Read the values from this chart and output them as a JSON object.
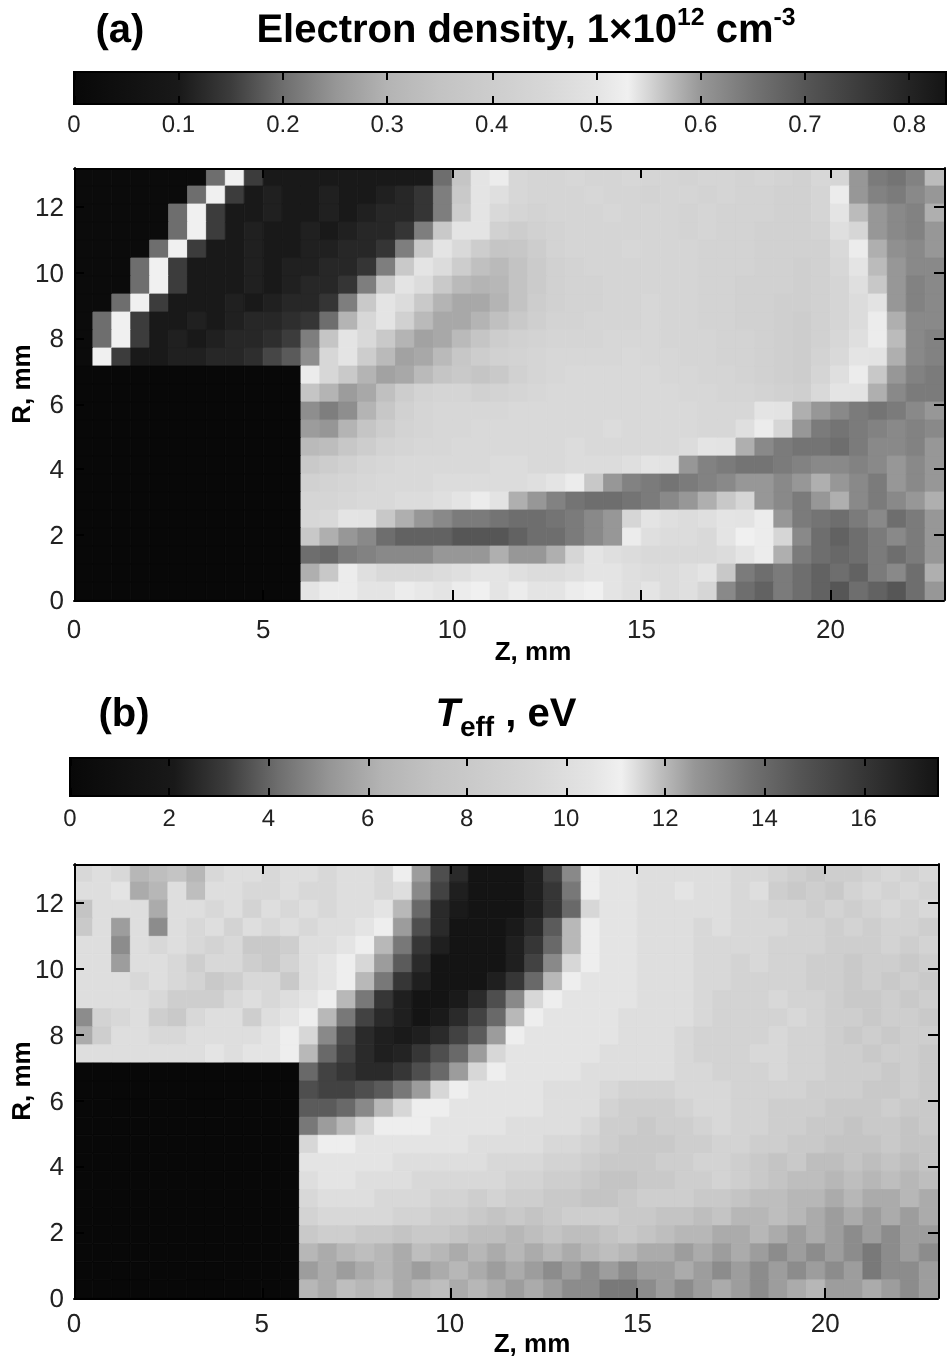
{
  "chart_data": [
    {
      "type": "heatmap",
      "title": "Electron density, 1×10$^{12}$ cm$^{-3}$",
      "annotations": [
        "(a)"
      ],
      "xlabel": "Z, mm",
      "ylabel": "R, mm",
      "xlim": [
        0,
        23
      ],
      "ylim": [
        0,
        13.2
      ],
      "xticks": [
        0,
        5,
        10,
        15,
        20
      ],
      "yticks": [
        0,
        2,
        4,
        6,
        8,
        10,
        12
      ],
      "clim": [
        0,
        0.835
      ],
      "cticks": [
        0,
        0.1,
        0.2,
        0.3,
        0.4,
        0.5,
        0.6,
        0.7,
        0.8
      ],
      "cells": [
        [
          0.02,
          0.02,
          0.02,
          0.02,
          0.02,
          0.02,
          0.02,
          0.2,
          0.53,
          0.15,
          0.1,
          0.1,
          0.1,
          0.1,
          0.1,
          0.1,
          0.1,
          0.1,
          0.1,
          0.2,
          0.36,
          0.5,
          0.52,
          0.45,
          0.44,
          0.44,
          0.45,
          0.44,
          0.44,
          0.45,
          0.44,
          0.44,
          0.43,
          0.44,
          0.44,
          0.43,
          0.44,
          0.43,
          0.42,
          0.45,
          0.55,
          0.6,
          0.64,
          0.65,
          0.63,
          0.57
        ],
        [
          0.02,
          0.02,
          0.02,
          0.02,
          0.02,
          0.02,
          0.2,
          0.53,
          0.15,
          0.1,
          0.11,
          0.1,
          0.1,
          0.11,
          0.1,
          0.1,
          0.11,
          0.12,
          0.14,
          0.22,
          0.38,
          0.5,
          0.48,
          0.45,
          0.44,
          0.44,
          0.44,
          0.45,
          0.44,
          0.44,
          0.43,
          0.44,
          0.44,
          0.43,
          0.44,
          0.43,
          0.43,
          0.42,
          0.42,
          0.44,
          0.52,
          0.6,
          0.63,
          0.64,
          0.62,
          0.6
        ],
        [
          0.02,
          0.02,
          0.02,
          0.02,
          0.02,
          0.2,
          0.53,
          0.15,
          0.1,
          0.1,
          0.11,
          0.1,
          0.1,
          0.11,
          0.1,
          0.11,
          0.12,
          0.12,
          0.14,
          0.22,
          0.4,
          0.5,
          0.46,
          0.44,
          0.43,
          0.44,
          0.44,
          0.44,
          0.45,
          0.44,
          0.44,
          0.44,
          0.43,
          0.44,
          0.43,
          0.43,
          0.43,
          0.42,
          0.42,
          0.44,
          0.5,
          0.57,
          0.6,
          0.62,
          0.63,
          0.58
        ],
        [
          0.02,
          0.02,
          0.02,
          0.02,
          0.02,
          0.2,
          0.53,
          0.15,
          0.1,
          0.11,
          0.1,
          0.1,
          0.11,
          0.1,
          0.11,
          0.12,
          0.12,
          0.14,
          0.22,
          0.38,
          0.5,
          0.5,
          0.42,
          0.4,
          0.42,
          0.43,
          0.44,
          0.44,
          0.44,
          0.44,
          0.44,
          0.44,
          0.43,
          0.44,
          0.43,
          0.43,
          0.42,
          0.42,
          0.42,
          0.43,
          0.48,
          0.55,
          0.6,
          0.62,
          0.63,
          0.6
        ],
        [
          0.02,
          0.02,
          0.02,
          0.02,
          0.2,
          0.53,
          0.15,
          0.1,
          0.1,
          0.11,
          0.1,
          0.1,
          0.11,
          0.11,
          0.12,
          0.12,
          0.14,
          0.22,
          0.38,
          0.5,
          0.46,
          0.4,
          0.36,
          0.37,
          0.4,
          0.43,
          0.44,
          0.44,
          0.44,
          0.45,
          0.44,
          0.44,
          0.44,
          0.43,
          0.43,
          0.43,
          0.42,
          0.42,
          0.42,
          0.42,
          0.46,
          0.52,
          0.58,
          0.61,
          0.62,
          0.6
        ],
        [
          0.02,
          0.02,
          0.02,
          0.2,
          0.53,
          0.15,
          0.1,
          0.1,
          0.1,
          0.11,
          0.1,
          0.11,
          0.11,
          0.12,
          0.12,
          0.14,
          0.22,
          0.38,
          0.5,
          0.47,
          0.4,
          0.34,
          0.32,
          0.35,
          0.39,
          0.42,
          0.43,
          0.44,
          0.44,
          0.44,
          0.44,
          0.44,
          0.44,
          0.43,
          0.43,
          0.43,
          0.42,
          0.42,
          0.41,
          0.42,
          0.45,
          0.5,
          0.57,
          0.6,
          0.62,
          0.62
        ],
        [
          0.02,
          0.02,
          0.02,
          0.2,
          0.53,
          0.15,
          0.1,
          0.1,
          0.1,
          0.11,
          0.1,
          0.11,
          0.12,
          0.12,
          0.14,
          0.22,
          0.38,
          0.5,
          0.47,
          0.38,
          0.32,
          0.3,
          0.31,
          0.35,
          0.39,
          0.42,
          0.43,
          0.43,
          0.44,
          0.44,
          0.44,
          0.44,
          0.44,
          0.43,
          0.43,
          0.42,
          0.42,
          0.42,
          0.41,
          0.42,
          0.44,
          0.48,
          0.56,
          0.6,
          0.63,
          0.62
        ],
        [
          0.02,
          0.02,
          0.2,
          0.53,
          0.15,
          0.1,
          0.1,
          0.1,
          0.11,
          0.1,
          0.11,
          0.12,
          0.12,
          0.14,
          0.22,
          0.38,
          0.5,
          0.47,
          0.38,
          0.3,
          0.28,
          0.28,
          0.3,
          0.35,
          0.4,
          0.42,
          0.43,
          0.43,
          0.44,
          0.44,
          0.45,
          0.44,
          0.44,
          0.43,
          0.43,
          0.42,
          0.42,
          0.41,
          0.41,
          0.42,
          0.44,
          0.47,
          0.54,
          0.6,
          0.63,
          0.62
        ],
        [
          0.02,
          0.2,
          0.53,
          0.15,
          0.1,
          0.1,
          0.11,
          0.1,
          0.11,
          0.12,
          0.12,
          0.13,
          0.14,
          0.2,
          0.3,
          0.45,
          0.5,
          0.42,
          0.32,
          0.28,
          0.28,
          0.3,
          0.34,
          0.38,
          0.41,
          0.43,
          0.43,
          0.44,
          0.44,
          0.44,
          0.45,
          0.44,
          0.44,
          0.43,
          0.43,
          0.42,
          0.42,
          0.41,
          0.4,
          0.42,
          0.44,
          0.47,
          0.52,
          0.58,
          0.62,
          0.62
        ],
        [
          0.02,
          0.2,
          0.53,
          0.15,
          0.1,
          0.11,
          0.1,
          0.11,
          0.12,
          0.12,
          0.13,
          0.15,
          0.22,
          0.36,
          0.5,
          0.46,
          0.38,
          0.3,
          0.27,
          0.28,
          0.32,
          0.36,
          0.4,
          0.42,
          0.43,
          0.44,
          0.44,
          0.44,
          0.45,
          0.45,
          0.45,
          0.44,
          0.44,
          0.44,
          0.43,
          0.43,
          0.42,
          0.41,
          0.4,
          0.42,
          0.45,
          0.48,
          0.52,
          0.57,
          0.62,
          0.63
        ],
        [
          0.02,
          0.53,
          0.15,
          0.1,
          0.1,
          0.11,
          0.11,
          0.12,
          0.12,
          0.13,
          0.16,
          0.18,
          0.24,
          0.45,
          0.5,
          0.4,
          0.32,
          0.27,
          0.28,
          0.32,
          0.37,
          0.4,
          0.42,
          0.43,
          0.44,
          0.45,
          0.45,
          0.45,
          0.45,
          0.46,
          0.45,
          0.45,
          0.44,
          0.44,
          0.43,
          0.43,
          0.42,
          0.41,
          0.4,
          0.43,
          0.46,
          0.5,
          0.54,
          0.58,
          0.62,
          0.63
        ],
        [
          0,
          0,
          0,
          0,
          0,
          0,
          0,
          0,
          0,
          0,
          0,
          0,
          0.52,
          0.45,
          0.38,
          0.3,
          0.27,
          0.28,
          0.32,
          0.36,
          0.38,
          0.36,
          0.38,
          0.42,
          0.44,
          0.45,
          0.46,
          0.46,
          0.46,
          0.46,
          0.46,
          0.45,
          0.45,
          0.44,
          0.44,
          0.43,
          0.42,
          0.41,
          0.4,
          0.44,
          0.48,
          0.52,
          0.56,
          0.6,
          0.63,
          0.64
        ],
        [
          0,
          0,
          0,
          0,
          0,
          0,
          0,
          0,
          0,
          0,
          0,
          0,
          0.36,
          0.3,
          0.26,
          0.28,
          0.34,
          0.4,
          0.43,
          0.44,
          0.44,
          0.42,
          0.43,
          0.44,
          0.45,
          0.46,
          0.46,
          0.46,
          0.46,
          0.46,
          0.46,
          0.46,
          0.45,
          0.45,
          0.44,
          0.44,
          0.43,
          0.42,
          0.41,
          0.46,
          0.5,
          0.54,
          0.58,
          0.62,
          0.64,
          0.64
        ],
        [
          0,
          0,
          0,
          0,
          0,
          0,
          0,
          0,
          0,
          0,
          0,
          0,
          0.24,
          0.22,
          0.24,
          0.3,
          0.37,
          0.42,
          0.44,
          0.45,
          0.45,
          0.45,
          0.45,
          0.46,
          0.46,
          0.46,
          0.46,
          0.46,
          0.46,
          0.46,
          0.46,
          0.46,
          0.46,
          0.45,
          0.45,
          0.45,
          0.5,
          0.54,
          0.58,
          0.6,
          0.62,
          0.64,
          0.65,
          0.64,
          0.62,
          0.6
        ],
        [
          0,
          0,
          0,
          0,
          0,
          0,
          0,
          0,
          0,
          0,
          0,
          0,
          0.26,
          0.25,
          0.3,
          0.36,
          0.4,
          0.43,
          0.44,
          0.45,
          0.45,
          0.46,
          0.46,
          0.46,
          0.46,
          0.46,
          0.46,
          0.46,
          0.47,
          0.46,
          0.46,
          0.46,
          0.46,
          0.45,
          0.45,
          0.48,
          0.52,
          0.55,
          0.6,
          0.64,
          0.65,
          0.64,
          0.63,
          0.62,
          0.63,
          0.62
        ],
        [
          0,
          0,
          0,
          0,
          0,
          0,
          0,
          0,
          0,
          0,
          0,
          0,
          0.32,
          0.33,
          0.37,
          0.4,
          0.43,
          0.44,
          0.45,
          0.45,
          0.46,
          0.46,
          0.46,
          0.46,
          0.46,
          0.46,
          0.47,
          0.46,
          0.46,
          0.46,
          0.46,
          0.46,
          0.47,
          0.5,
          0.54,
          0.58,
          0.62,
          0.64,
          0.65,
          0.65,
          0.66,
          0.64,
          0.62,
          0.62,
          0.63,
          0.6
        ],
        [
          0,
          0,
          0,
          0,
          0,
          0,
          0,
          0,
          0,
          0,
          0,
          0,
          0.38,
          0.4,
          0.42,
          0.44,
          0.45,
          0.46,
          0.46,
          0.46,
          0.46,
          0.46,
          0.47,
          0.47,
          0.46,
          0.46,
          0.47,
          0.47,
          0.47,
          0.48,
          0.5,
          0.54,
          0.6,
          0.63,
          0.64,
          0.65,
          0.65,
          0.64,
          0.63,
          0.62,
          0.62,
          0.63,
          0.62,
          0.6,
          0.62,
          0.6
        ],
        [
          0,
          0,
          0,
          0,
          0,
          0,
          0,
          0,
          0,
          0,
          0,
          0,
          0.42,
          0.43,
          0.44,
          0.45,
          0.46,
          0.46,
          0.46,
          0.47,
          0.47,
          0.47,
          0.47,
          0.47,
          0.48,
          0.5,
          0.52,
          0.56,
          0.6,
          0.63,
          0.64,
          0.65,
          0.64,
          0.63,
          0.62,
          0.6,
          0.6,
          0.62,
          0.6,
          0.58,
          0.6,
          0.62,
          0.64,
          0.6,
          0.62,
          0.6
        ],
        [
          0,
          0,
          0,
          0,
          0,
          0,
          0,
          0,
          0,
          0,
          0,
          0,
          0.44,
          0.44,
          0.45,
          0.46,
          0.46,
          0.47,
          0.47,
          0.48,
          0.5,
          0.52,
          0.54,
          0.58,
          0.6,
          0.63,
          0.65,
          0.66,
          0.66,
          0.65,
          0.64,
          0.62,
          0.6,
          0.58,
          0.56,
          0.55,
          0.6,
          0.62,
          0.64,
          0.6,
          0.58,
          0.62,
          0.64,
          0.62,
          0.6,
          0.58
        ],
        [
          0,
          0,
          0,
          0,
          0,
          0,
          0,
          0,
          0,
          0,
          0,
          0,
          0.45,
          0.46,
          0.5,
          0.54,
          0.56,
          0.58,
          0.6,
          0.62,
          0.64,
          0.64,
          0.65,
          0.66,
          0.66,
          0.65,
          0.64,
          0.62,
          0.6,
          0.55,
          0.5,
          0.48,
          0.47,
          0.48,
          0.5,
          0.54,
          0.52,
          0.6,
          0.64,
          0.65,
          0.66,
          0.64,
          0.62,
          0.66,
          0.64,
          0.6
        ],
        [
          0,
          0,
          0,
          0,
          0,
          0,
          0,
          0,
          0,
          0,
          0,
          0,
          0.56,
          0.58,
          0.6,
          0.62,
          0.66,
          0.68,
          0.68,
          0.68,
          0.7,
          0.7,
          0.7,
          0.68,
          0.66,
          0.66,
          0.64,
          0.62,
          0.6,
          0.52,
          0.48,
          0.47,
          0.47,
          0.46,
          0.5,
          0.53,
          0.52,
          0.55,
          0.62,
          0.66,
          0.68,
          0.66,
          0.64,
          0.62,
          0.64,
          0.6
        ],
        [
          0,
          0,
          0,
          0,
          0,
          0,
          0,
          0,
          0,
          0,
          0,
          0,
          0.66,
          0.67,
          0.64,
          0.63,
          0.62,
          0.62,
          0.62,
          0.6,
          0.6,
          0.6,
          0.58,
          0.6,
          0.6,
          0.58,
          0.55,
          0.5,
          0.48,
          0.47,
          0.46,
          0.46,
          0.46,
          0.46,
          0.47,
          0.5,
          0.52,
          0.58,
          0.64,
          0.66,
          0.67,
          0.66,
          0.64,
          0.66,
          0.64,
          0.6
        ],
        [
          0,
          0,
          0,
          0,
          0,
          0,
          0,
          0,
          0,
          0,
          0,
          0,
          0.58,
          0.56,
          0.52,
          0.48,
          0.46,
          0.46,
          0.46,
          0.47,
          0.48,
          0.5,
          0.5,
          0.48,
          0.47,
          0.47,
          0.48,
          0.5,
          0.5,
          0.48,
          0.47,
          0.47,
          0.48,
          0.5,
          0.56,
          0.64,
          0.66,
          0.64,
          0.66,
          0.68,
          0.66,
          0.68,
          0.64,
          0.62,
          0.66,
          0.58
        ],
        [
          0,
          0,
          0,
          0,
          0,
          0,
          0,
          0,
          0,
          0,
          0,
          0,
          0.5,
          0.52,
          0.52,
          0.5,
          0.5,
          0.52,
          0.51,
          0.5,
          0.52,
          0.53,
          0.5,
          0.52,
          0.5,
          0.5,
          0.52,
          0.53,
          0.5,
          0.48,
          0.5,
          0.47,
          0.48,
          0.55,
          0.62,
          0.66,
          0.68,
          0.64,
          0.66,
          0.68,
          0.7,
          0.66,
          0.68,
          0.7,
          0.66,
          0.6
        ]
      ]
    },
    {
      "type": "heatmap",
      "title": "T$_{eff}$ , eV",
      "annotations": [
        "(b)"
      ],
      "xlabel": "Z, mm",
      "ylabel": "R, mm",
      "xlim": [
        0,
        23
      ],
      "ylim": [
        0,
        13.2
      ],
      "xticks": [
        0,
        5,
        10,
        15,
        20
      ],
      "yticks": [
        0,
        2,
        4,
        6,
        8,
        10,
        12
      ],
      "clim": [
        0,
        17.5
      ],
      "cticks": [
        0,
        2,
        4,
        6,
        8,
        10,
        12,
        14,
        16
      ],
      "cells": [
        [
          9.5,
          10,
          9.5,
          6.5,
          7,
          7.5,
          6.5,
          9.5,
          10,
          10,
          9.5,
          10,
          10,
          9.5,
          10,
          10,
          9.5,
          11,
          12.5,
          15,
          16.5,
          17.5,
          17.5,
          17.5,
          17,
          15.5,
          13,
          11,
          10.5,
          10.5,
          10,
          10,
          10,
          10,
          10,
          9.5,
          9.5,
          9,
          8.5,
          8,
          8.5,
          8.5,
          9,
          9.5,
          9,
          9.5
        ],
        [
          10,
          10,
          10.5,
          6,
          6.5,
          10,
          7,
          10,
          10,
          9.5,
          9.5,
          10,
          9.5,
          9.5,
          10,
          10,
          9.5,
          10,
          13,
          15.5,
          17,
          17.5,
          17.5,
          17.5,
          17,
          16,
          13.5,
          11,
          10.5,
          10.5,
          10,
          10,
          10.5,
          10,
          10,
          9.5,
          10,
          8.5,
          8,
          8.5,
          8,
          9,
          9.5,
          9,
          9.5,
          9
        ],
        [
          7.5,
          10,
          10,
          10,
          6,
          10,
          10,
          9.5,
          10,
          9,
          10,
          9.5,
          10,
          9.5,
          10,
          10,
          10.5,
          12,
          14,
          16.5,
          17.2,
          17.5,
          17.5,
          17.5,
          17,
          16,
          14,
          11.5,
          10.5,
          10.5,
          10,
          10,
          10,
          10,
          10,
          9.5,
          9.5,
          9,
          9,
          8.5,
          9,
          8.5,
          9,
          9.5,
          9,
          9.5
        ],
        [
          8,
          10,
          5.5,
          10,
          5,
          10,
          9.5,
          10,
          9,
          10,
          9.5,
          10,
          9.5,
          10,
          10,
          10.5,
          11,
          12.5,
          15,
          16.5,
          17.5,
          17.5,
          17.5,
          17.2,
          16.5,
          14.5,
          12,
          11,
          10.5,
          10.5,
          10,
          10,
          10,
          9.5,
          10,
          9.5,
          9.5,
          9.5,
          9,
          9,
          8.5,
          9,
          8.5,
          9,
          9,
          8.5
        ],
        [
          10,
          10,
          5,
          10,
          9.5,
          10,
          9.5,
          9,
          9.5,
          8,
          8,
          8.5,
          10,
          10,
          10.5,
          11,
          12,
          13.5,
          16,
          17,
          17.5,
          17.5,
          17.5,
          17,
          16,
          14,
          12,
          11,
          10.5,
          10.5,
          10,
          10,
          10,
          9.5,
          9.5,
          9.5,
          9.5,
          9,
          9,
          9,
          8.5,
          8.5,
          8.5,
          9,
          8.5,
          9
        ],
        [
          10,
          10,
          5.5,
          10,
          10,
          9.5,
          8.5,
          9.5,
          9.5,
          8.5,
          8,
          9,
          10,
          10.5,
          11,
          11.5,
          12.5,
          14.5,
          16.5,
          17.5,
          17.5,
          17.5,
          17.5,
          17,
          15.5,
          13,
          11.5,
          11,
          10.5,
          10.5,
          10,
          10,
          10,
          9.5,
          9.5,
          9,
          9.5,
          9,
          9,
          8.5,
          8.5,
          8,
          8.5,
          8.5,
          8,
          8.5
        ],
        [
          10,
          10,
          10,
          9.5,
          10,
          9.5,
          9,
          8,
          8.5,
          9.5,
          9.5,
          8,
          10,
          10.5,
          11,
          12,
          13.5,
          16,
          17,
          17.5,
          17.5,
          17.5,
          17,
          16,
          14,
          12,
          11,
          10.5,
          10.5,
          10.5,
          10,
          10,
          10,
          9.5,
          9.5,
          9,
          9,
          9,
          9,
          8.5,
          8.5,
          8,
          8.5,
          8,
          8.5,
          8
        ],
        [
          10,
          10,
          10,
          10,
          9.5,
          8.5,
          8.5,
          8.5,
          9.5,
          10,
          9.5,
          10,
          10.5,
          11,
          12,
          13.5,
          16,
          17,
          17.5,
          17.5,
          17.2,
          16.5,
          15,
          13,
          11.5,
          11,
          10.5,
          10.5,
          10.5,
          10.5,
          10,
          10,
          10,
          9.5,
          9,
          9,
          9,
          9.5,
          9,
          9,
          8.5,
          8,
          8,
          8.5,
          8,
          8.5
        ],
        [
          5,
          9,
          9.5,
          10,
          8.5,
          8,
          9.5,
          10,
          10,
          8.5,
          10,
          10.5,
          11,
          12,
          13.5,
          15.5,
          16.5,
          17,
          17.5,
          17.2,
          16.5,
          15.5,
          14,
          12,
          11,
          10.5,
          10.5,
          10.5,
          10.5,
          10,
          10,
          10,
          10,
          9.5,
          9,
          9,
          9,
          9,
          9.5,
          9,
          8.5,
          8.5,
          8,
          8.5,
          8.5,
          8
        ],
        [
          6,
          8.5,
          10,
          10,
          9.5,
          9.5,
          10,
          10,
          10,
          10,
          10.5,
          11,
          11.5,
          13,
          15,
          16.5,
          17,
          17.2,
          17,
          16.5,
          15.5,
          14.5,
          12.5,
          11,
          10.5,
          10.5,
          10.5,
          10.5,
          10.5,
          10,
          10,
          10,
          9.5,
          9,
          9,
          9,
          9,
          9.5,
          9,
          9,
          8.5,
          8,
          8.5,
          8,
          8.5,
          8.5
        ],
        [
          10,
          10,
          10,
          10,
          10,
          10,
          10,
          10.5,
          10,
          10.5,
          10.5,
          11,
          12,
          14,
          15.5,
          16.5,
          17,
          16.8,
          16,
          15,
          14,
          12.5,
          11.5,
          10.5,
          10.5,
          10.5,
          10.5,
          10.5,
          10,
          10,
          10,
          10,
          9.5,
          9,
          9,
          9,
          9.5,
          9.5,
          9,
          9,
          8.5,
          8.5,
          8,
          8.5,
          8.5,
          8
        ],
        [
          0,
          0,
          0,
          0,
          0,
          0,
          0,
          0,
          0,
          0,
          0,
          0,
          14,
          15.5,
          16,
          16.5,
          16.5,
          16,
          15,
          14,
          12.5,
          11.5,
          11,
          10.5,
          10.5,
          10.5,
          10.5,
          10,
          10,
          10,
          10,
          10,
          9.5,
          9.5,
          9,
          9,
          9,
          9.5,
          9,
          9,
          8.5,
          8.5,
          8.5,
          8,
          8.5,
          8
        ],
        [
          0,
          0,
          0,
          0,
          0,
          0,
          0,
          0,
          0,
          0,
          0,
          0,
          15,
          15.5,
          15.5,
          15,
          14.5,
          13.5,
          12.5,
          11.5,
          11,
          10.5,
          10.5,
          10.5,
          10.5,
          10,
          10,
          10,
          9.5,
          9,
          9,
          9,
          9.5,
          9.5,
          9.5,
          9,
          9,
          9,
          9,
          8.5,
          8.5,
          8.5,
          8,
          8,
          8.5,
          8
        ],
        [
          0,
          0,
          0,
          0,
          0,
          0,
          0,
          0,
          0,
          0,
          0,
          0,
          14.5,
          14.5,
          14,
          13,
          12,
          11.5,
          11,
          11,
          10.5,
          10.5,
          10.5,
          10.5,
          10.5,
          10,
          10,
          10,
          9,
          8.5,
          8.5,
          8.5,
          9,
          9.5,
          9.5,
          9,
          9,
          8.5,
          8.5,
          8.5,
          8,
          8,
          8,
          8.5,
          8,
          8
        ],
        [
          0,
          0,
          0,
          0,
          0,
          0,
          0,
          0,
          0,
          0,
          0,
          0,
          13.5,
          12.5,
          12,
          11.5,
          11,
          11,
          11,
          10.5,
          10.5,
          10.5,
          10.5,
          10,
          10,
          10,
          10,
          9.5,
          8.5,
          8.5,
          8,
          8.5,
          8.5,
          9,
          9.5,
          9,
          9,
          8.5,
          8.5,
          8,
          8,
          7.5,
          8,
          8,
          7.5,
          8
        ],
        [
          0,
          0,
          0,
          0,
          0,
          0,
          0,
          0,
          0,
          0,
          0,
          0,
          11.5,
          11,
          11,
          10.5,
          10.5,
          10.5,
          10.5,
          10.5,
          10.5,
          10,
          10,
          10,
          10,
          9.5,
          9.5,
          9,
          8.5,
          8,
          8,
          8,
          8.5,
          8.5,
          9,
          9,
          8.5,
          8.5,
          8,
          8,
          7.5,
          7.5,
          7.5,
          8,
          7.5,
          7.5
        ],
        [
          0,
          0,
          0,
          0,
          0,
          0,
          0,
          0,
          0,
          0,
          0,
          0,
          10.5,
          10.5,
          10.5,
          10.5,
          10.5,
          10,
          10,
          10,
          10,
          10,
          9.5,
          9.5,
          9.5,
          9,
          9,
          8.5,
          8,
          8,
          8,
          8.5,
          8.5,
          9,
          9,
          8.5,
          8,
          7.5,
          8,
          7,
          7,
          7.5,
          7,
          7.5,
          7,
          7.5
        ],
        [
          0,
          0,
          0,
          0,
          0,
          0,
          0,
          0,
          0,
          0,
          0,
          0,
          10,
          10.5,
          10.5,
          10,
          10,
          10,
          9.5,
          9.5,
          9.5,
          9.5,
          9.5,
          9,
          9,
          8.5,
          8.5,
          8,
          7.5,
          7.5,
          8,
          8,
          8.5,
          8.5,
          9,
          8.5,
          8,
          7.5,
          7,
          7,
          6.5,
          7,
          6.5,
          7,
          6.5,
          7
        ],
        [
          0,
          0,
          0,
          0,
          0,
          0,
          0,
          0,
          0,
          0,
          0,
          0,
          9.5,
          10,
          10,
          10,
          9.5,
          9.5,
          9.5,
          9,
          9,
          8.5,
          9,
          8.5,
          8.5,
          8,
          8,
          7.5,
          7.5,
          8,
          8.5,
          8.5,
          8.5,
          8,
          8,
          7.5,
          7,
          7,
          6.5,
          6.5,
          6,
          6.5,
          6,
          6,
          6.5,
          6
        ],
        [
          0,
          0,
          0,
          0,
          0,
          0,
          0,
          0,
          0,
          0,
          0,
          0,
          9,
          9.5,
          9.5,
          9.5,
          9.5,
          9,
          9,
          8.5,
          8.5,
          8,
          7.5,
          8,
          7.5,
          8,
          8.5,
          8.5,
          8.5,
          8,
          8,
          7.5,
          7.5,
          7,
          7.5,
          6.5,
          6.5,
          7,
          6.5,
          6,
          5.5,
          6,
          5.5,
          6,
          5.5,
          6
        ],
        [
          0,
          0,
          0,
          0,
          0,
          0,
          0,
          0,
          0,
          0,
          0,
          0,
          8,
          8.5,
          8.5,
          8,
          8,
          7.5,
          8,
          8,
          7.5,
          7,
          7,
          6.5,
          7,
          7.5,
          7,
          7,
          7.5,
          8,
          7.5,
          7,
          6.5,
          6.5,
          6,
          6,
          6.5,
          6,
          5.5,
          6,
          5.5,
          5,
          5.5,
          5,
          5.5,
          5.5
        ],
        [
          0,
          0,
          0,
          0,
          0,
          0,
          0,
          0,
          0,
          0,
          0,
          0,
          6.5,
          6,
          6.5,
          7,
          6.5,
          6,
          7,
          6.5,
          6,
          6.5,
          6,
          6.5,
          6,
          6.5,
          6,
          6.5,
          7,
          6.5,
          6,
          6,
          5.5,
          6,
          5.5,
          6,
          5.5,
          5,
          5.5,
          5,
          5.5,
          5,
          4.5,
          5,
          5.5,
          5
        ],
        [
          0,
          0,
          0,
          0,
          0,
          0,
          0,
          0,
          0,
          0,
          0,
          0,
          5.5,
          6,
          5.5,
          6,
          6.5,
          6,
          5.5,
          6,
          6.5,
          6,
          5.5,
          6,
          5.5,
          5,
          5.5,
          5,
          5.5,
          5,
          5.5,
          5.5,
          6,
          5.5,
          5,
          5.5,
          5,
          5.5,
          5,
          5.5,
          5,
          5.5,
          4.5,
          5,
          5,
          5.5
        ],
        [
          0,
          0,
          0,
          0,
          0,
          0,
          0,
          0,
          0,
          0,
          0,
          0,
          6.5,
          6,
          7,
          6.5,
          7,
          6,
          6.5,
          7,
          6,
          6.5,
          6,
          5.5,
          6,
          5.5,
          5,
          5,
          4.5,
          4.5,
          5,
          5.5,
          5,
          5.5,
          6,
          5.5,
          5,
          5.5,
          6,
          6.5,
          5.5,
          5.5,
          6,
          5.5,
          5,
          5.5
        ]
      ]
    }
  ]
}
